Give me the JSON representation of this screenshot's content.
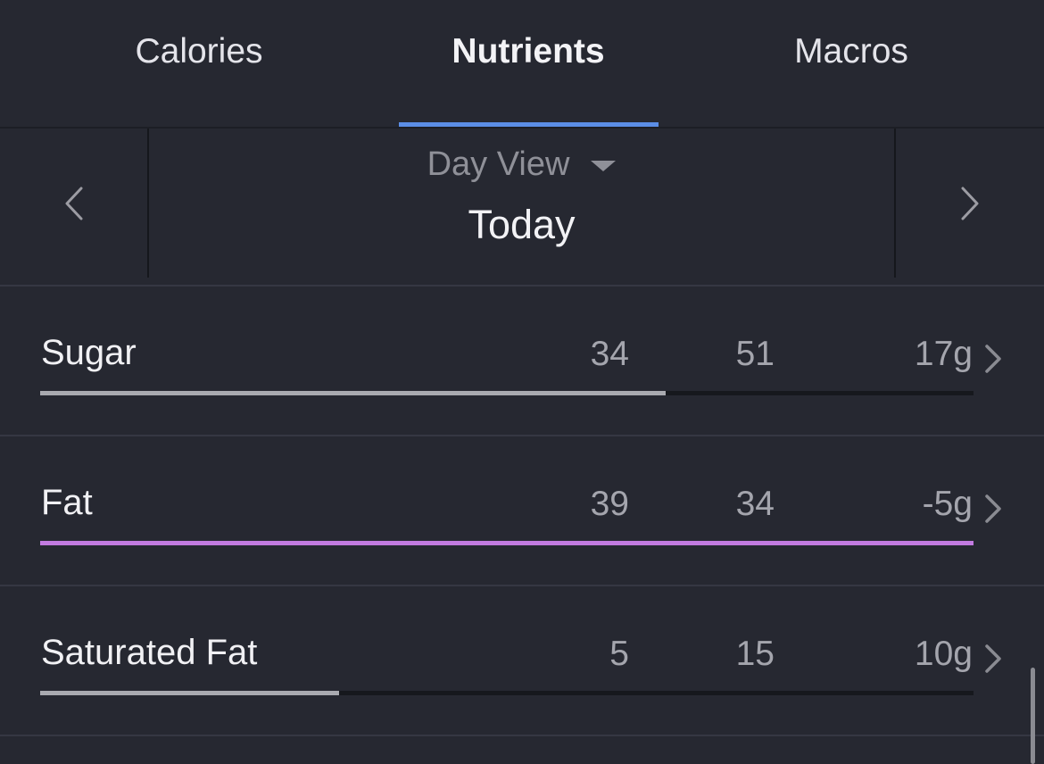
{
  "tabs": {
    "calories": "Calories",
    "nutrients": "Nutrients",
    "macros": "Macros",
    "active": "Nutrients"
  },
  "datenav": {
    "view_label": "Day View",
    "date_label": "Today",
    "prev_icon": "chevron-left-icon",
    "next_icon": "chevron-right-icon",
    "caret_icon": "caret-down-icon"
  },
  "nutrients": [
    {
      "name": "Sugar",
      "total": "34",
      "goal": "51",
      "left": "17g",
      "progress": 0.67,
      "bar_color": "#a9aab0"
    },
    {
      "name": "Fat",
      "total": "39",
      "goal": "34",
      "left": "-5g",
      "progress": 1.0,
      "bar_color": "#c27be0"
    },
    {
      "name": "Saturated Fat",
      "total": "5",
      "goal": "15",
      "left": "10g",
      "progress": 0.32,
      "bar_color": "#a9aab0"
    }
  ],
  "colors": {
    "background": "#262831",
    "accent": "#5b8ee6",
    "over_goal": "#c27be0"
  }
}
